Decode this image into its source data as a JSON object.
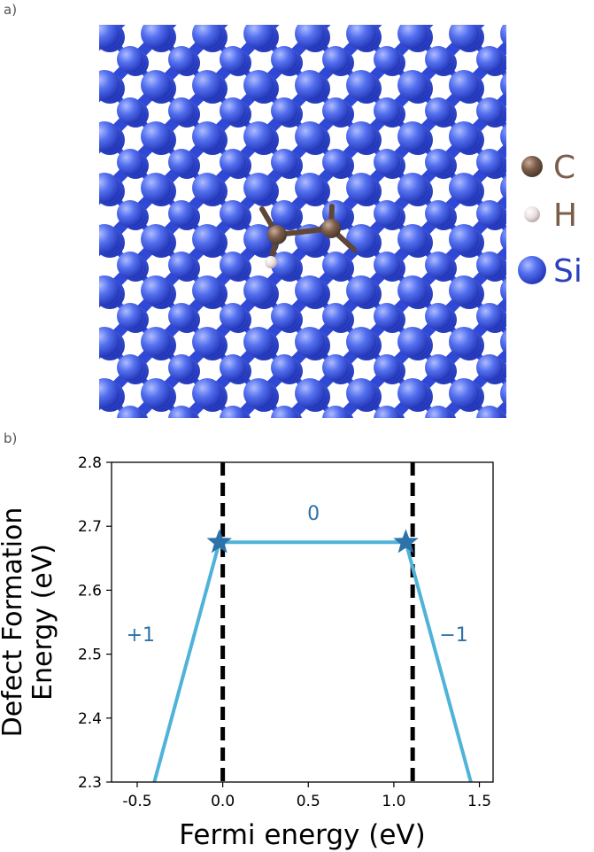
{
  "panel_a": {
    "label": "a)",
    "legend": [
      {
        "symbol": "C",
        "color": "#7b5d4a"
      },
      {
        "symbol": "H",
        "color": "#7b5d4a"
      },
      {
        "symbol": "Si",
        "color": "#2c3fbf"
      }
    ],
    "colors": {
      "si_atom": "#4a63e8",
      "si_bond": "#3048d6",
      "c_atom": "#7b5d4a",
      "h_atom": "#ece4e4"
    }
  },
  "panel_b": {
    "label": "b)"
  },
  "chart_data": {
    "type": "line",
    "xlabel": "Fermi energy (eV)",
    "ylabel_lines": [
      "Defect Formation",
      "Energy (eV)"
    ],
    "xlim": [
      -0.65,
      1.58
    ],
    "ylim": [
      2.3,
      2.8
    ],
    "xticks": [
      "-0.5",
      "0.0",
      "0.5",
      "1.0",
      "1.5"
    ],
    "xtick_values": [
      -0.5,
      0.0,
      0.5,
      1.0,
      1.5
    ],
    "yticks": [
      "2.3",
      "2.4",
      "2.5",
      "2.6",
      "2.7",
      "2.8"
    ],
    "ytick_values": [
      2.3,
      2.4,
      2.5,
      2.6,
      2.7,
      2.8
    ],
    "series": [
      {
        "x": [
          -0.4,
          -0.02,
          1.07,
          1.45
        ],
        "y": [
          2.3,
          2.675,
          2.675,
          2.3
        ],
        "color": "#4fb3d9"
      }
    ],
    "transition_points": [
      {
        "x": -0.02,
        "y": 2.675
      },
      {
        "x": 1.07,
        "y": 2.675
      }
    ],
    "vertical_lines": [
      0.0,
      1.11
    ],
    "annotations": [
      {
        "text": "+1",
        "x": -0.48,
        "y": 2.52
      },
      {
        "text": "0",
        "x": 0.53,
        "y": 2.71
      },
      {
        "text": "−1",
        "x": 1.35,
        "y": 2.52
      }
    ],
    "colors": {
      "line": "#4fb3d9",
      "star": "#2d73aa",
      "annotation": "#2d73aa",
      "vline": "#000000"
    }
  }
}
